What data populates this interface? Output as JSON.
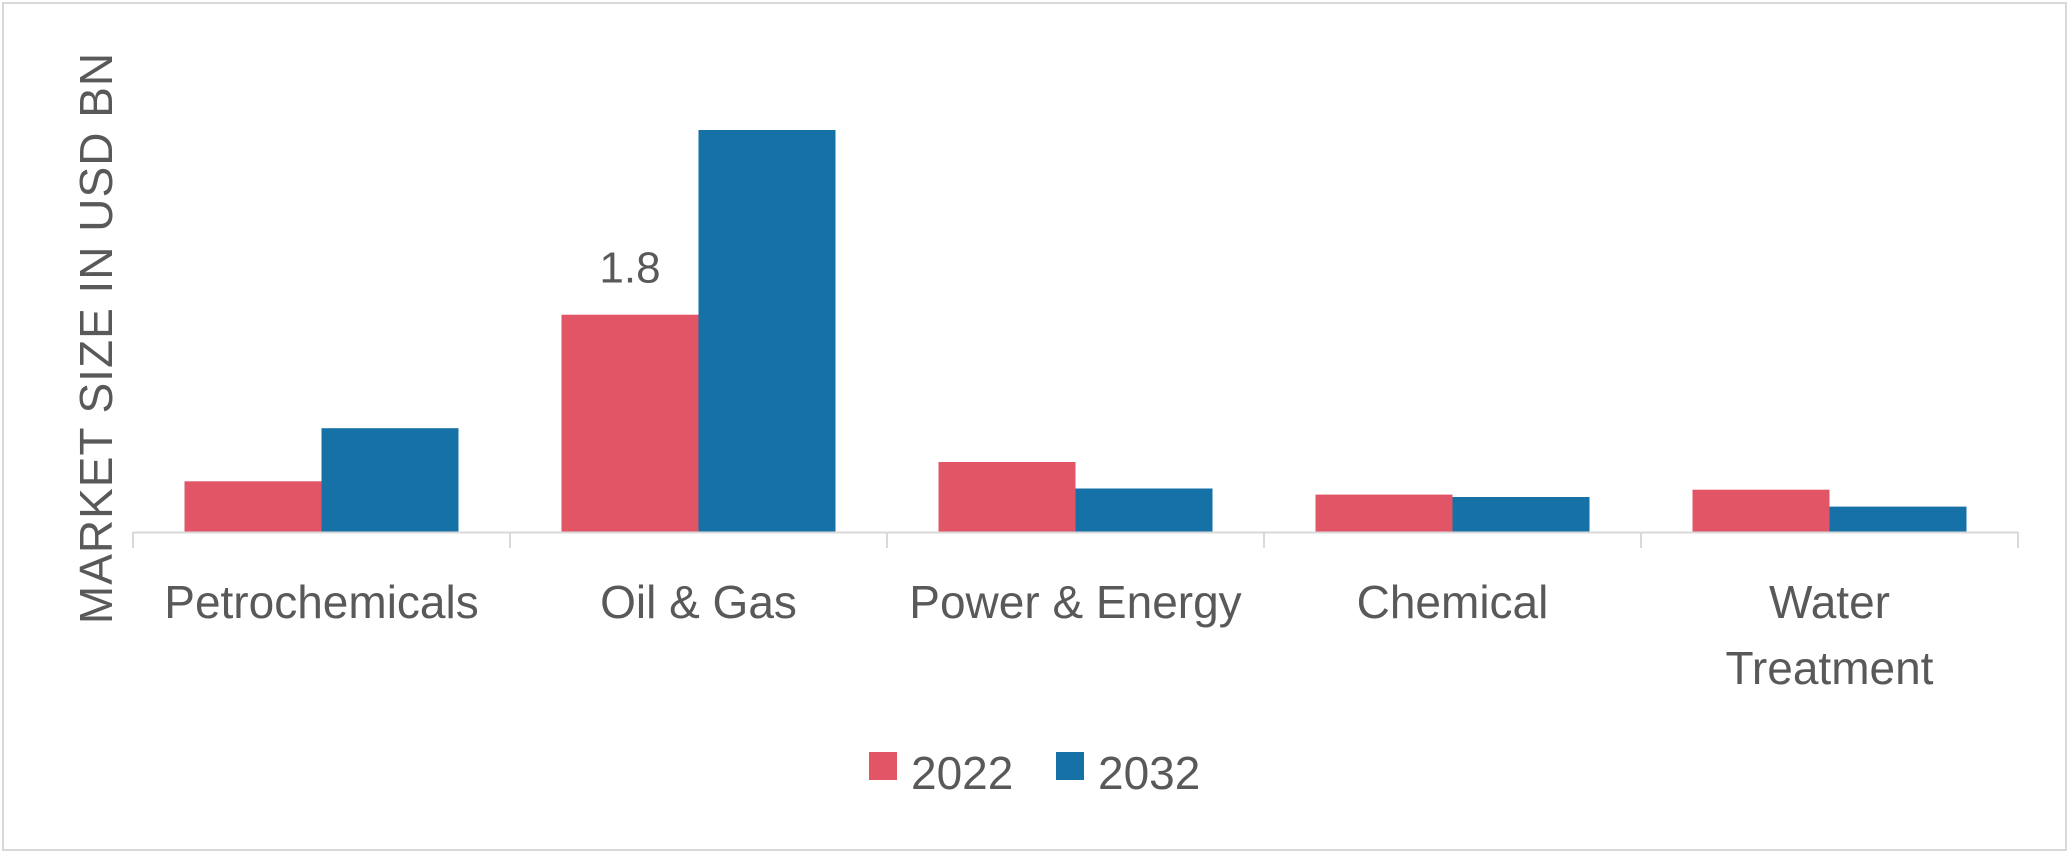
{
  "chart_data": {
    "type": "bar",
    "title": "",
    "xlabel": "",
    "ylabel": "MARKET SIZE IN USD BN",
    "categories": [
      [
        "Petrochemicals"
      ],
      [
        "Oil & Gas"
      ],
      [
        "Power & Energy"
      ],
      [
        "Chemical"
      ],
      [
        "Water",
        "Treatment"
      ]
    ],
    "series": [
      {
        "name": "2022",
        "color": "#e15566",
        "values": [
          0.42,
          1.8,
          0.58,
          0.31,
          0.35
        ]
      },
      {
        "name": "2032",
        "color": "#1672a6",
        "values": [
          0.86,
          3.33,
          0.36,
          0.29,
          0.21
        ]
      }
    ],
    "data_labels": [
      {
        "series": 0,
        "category": 1,
        "text": "1.8"
      }
    ],
    "ylim": [
      0,
      3.33
    ],
    "y_axis_visible": false,
    "grid": false,
    "legend_position": "bottom"
  }
}
